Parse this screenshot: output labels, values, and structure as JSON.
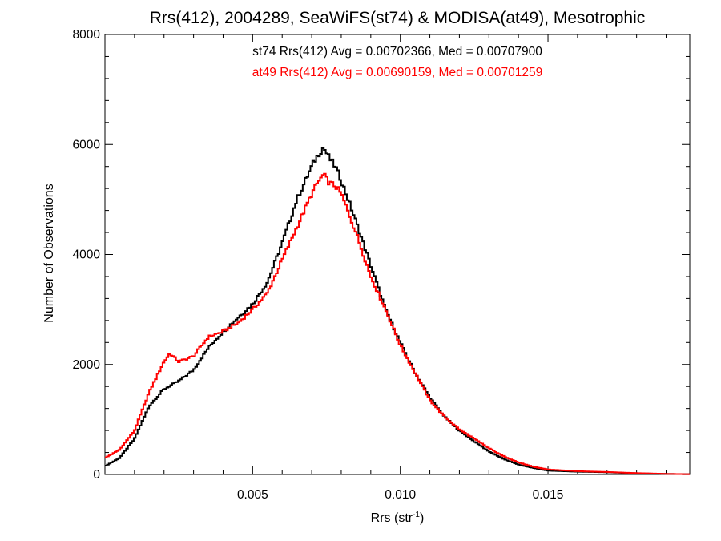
{
  "chart_data": {
    "type": "line",
    "title": "Rrs(412), 2004289, SeaWiFS(st74) & MODISA(at49), Mesotrophic",
    "xlabel_main": "Rrs (str",
    "xlabel_sup": "-1",
    "xlabel_close": ")",
    "ylabel": "Number of Observations",
    "xlim": [
      0.0,
      0.0198
    ],
    "ylim": [
      0,
      8000
    ],
    "x_ticks": [
      {
        "value": 0.005,
        "label": "0.005"
      },
      {
        "value": 0.01,
        "label": "0.010"
      },
      {
        "value": 0.015,
        "label": "0.015"
      }
    ],
    "y_ticks": [
      {
        "value": 0,
        "label": "0"
      },
      {
        "value": 2000,
        "label": "2000"
      },
      {
        "value": 4000,
        "label": "4000"
      },
      {
        "value": 6000,
        "label": "6000"
      },
      {
        "value": 8000,
        "label": "8000"
      }
    ],
    "annotations": [
      {
        "text": "st74 Rrs(412) Avg = 0.00702366, Med = 0.00707900",
        "color": "#000000"
      },
      {
        "text": "at49 Rrs(412) Avg = 0.00690159, Med = 0.00701259",
        "color": "#ff0000"
      }
    ],
    "step": "histogram",
    "series": [
      {
        "color": "#000000",
        "x": [
          0.0,
          0.0005,
          0.001,
          0.0015,
          0.002,
          0.0025,
          0.003,
          0.0035,
          0.004,
          0.0045,
          0.005,
          0.0055,
          0.006,
          0.0065,
          0.007,
          0.0072,
          0.0074,
          0.0076,
          0.0078,
          0.008,
          0.0085,
          0.009,
          0.0095,
          0.01,
          0.0105,
          0.011,
          0.0115,
          0.012,
          0.0125,
          0.013,
          0.0135,
          0.014,
          0.0145,
          0.015,
          0.016,
          0.017,
          0.018,
          0.019,
          0.0198
        ],
        "y": [
          150,
          300,
          650,
          1250,
          1550,
          1700,
          1900,
          2300,
          2600,
          2850,
          3100,
          3500,
          4200,
          5000,
          5600,
          5800,
          5950,
          5750,
          5600,
          5350,
          4600,
          3800,
          3000,
          2400,
          1850,
          1400,
          1050,
          800,
          600,
          420,
          280,
          180,
          120,
          70,
          50,
          40,
          20,
          10,
          5
        ]
      },
      {
        "color": "#ff0000",
        "x": [
          0.0,
          0.0005,
          0.001,
          0.0015,
          0.002,
          0.0022,
          0.0025,
          0.003,
          0.0035,
          0.004,
          0.0045,
          0.005,
          0.0055,
          0.006,
          0.0065,
          0.007,
          0.0072,
          0.0074,
          0.0076,
          0.0078,
          0.008,
          0.0085,
          0.009,
          0.0095,
          0.01,
          0.0105,
          0.011,
          0.0115,
          0.012,
          0.0125,
          0.013,
          0.0135,
          0.014,
          0.0145,
          0.015,
          0.016,
          0.017,
          0.018,
          0.019,
          0.0198
        ],
        "y": [
          300,
          450,
          800,
          1500,
          2050,
          2200,
          2050,
          2150,
          2500,
          2600,
          2750,
          3000,
          3300,
          3900,
          4500,
          5100,
          5300,
          5450,
          5300,
          5250,
          5100,
          4400,
          3600,
          3000,
          2350,
          1850,
          1350,
          1050,
          820,
          650,
          480,
          330,
          220,
          140,
          90,
          60,
          45,
          25,
          10,
          5
        ]
      }
    ]
  }
}
